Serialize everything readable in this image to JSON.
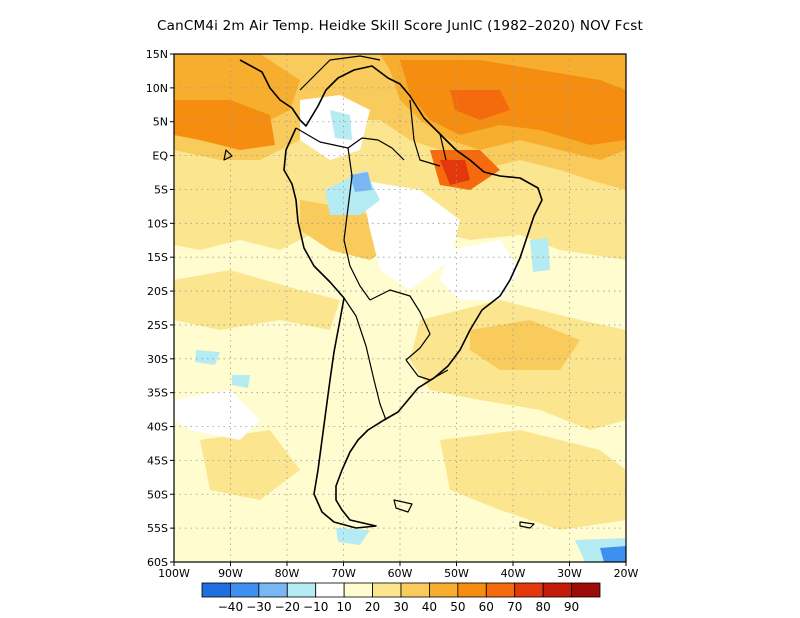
{
  "title": "CanCM4i  2m Air Temp. Heidke Skill Score JunIC (1982–2020) NOV Fcst",
  "map": {
    "lon_range": [
      -100,
      -20
    ],
    "lat_range": [
      -60,
      15
    ],
    "grid": "dotted",
    "y_ticks": [
      "15N",
      "10N",
      "5N",
      "EQ",
      "5S",
      "10S",
      "15S",
      "20S",
      "25S",
      "30S",
      "35S",
      "40S",
      "45S",
      "50S",
      "55S",
      "60S"
    ],
    "x_ticks": [
      "100W",
      "90W",
      "80W",
      "70W",
      "60W",
      "50W",
      "40W",
      "30W",
      "20W"
    ]
  },
  "colorbar": {
    "labels": [
      "−40",
      "−30",
      "−20",
      "−10",
      "10",
      "20",
      "30",
      "40",
      "50",
      "60",
      "70",
      "80",
      "90"
    ],
    "colors": [
      "#1f6fe0",
      "#3d8ff0",
      "#79b6f3",
      "#b5ebf2",
      "#fffdd0",
      "#fbe58f",
      "#f9ca5c",
      "#f7ad2d",
      "#f58d10",
      "#f56a0c",
      "#e2380b",
      "#c41a0a",
      "#9c0c08"
    ]
  },
  "palette": {
    "neg1": "#b5ebf2",
    "neg2": "#79b6f3",
    "neg3": "#3d8ff0",
    "pos1": "#fffdd0",
    "pos2": "#fbe58f",
    "pos3": "#f9ca5c",
    "pos4": "#f7ad2d",
    "pos5": "#f58d10",
    "pos6": "#f56a0c",
    "pos7": "#e2380b"
  }
}
